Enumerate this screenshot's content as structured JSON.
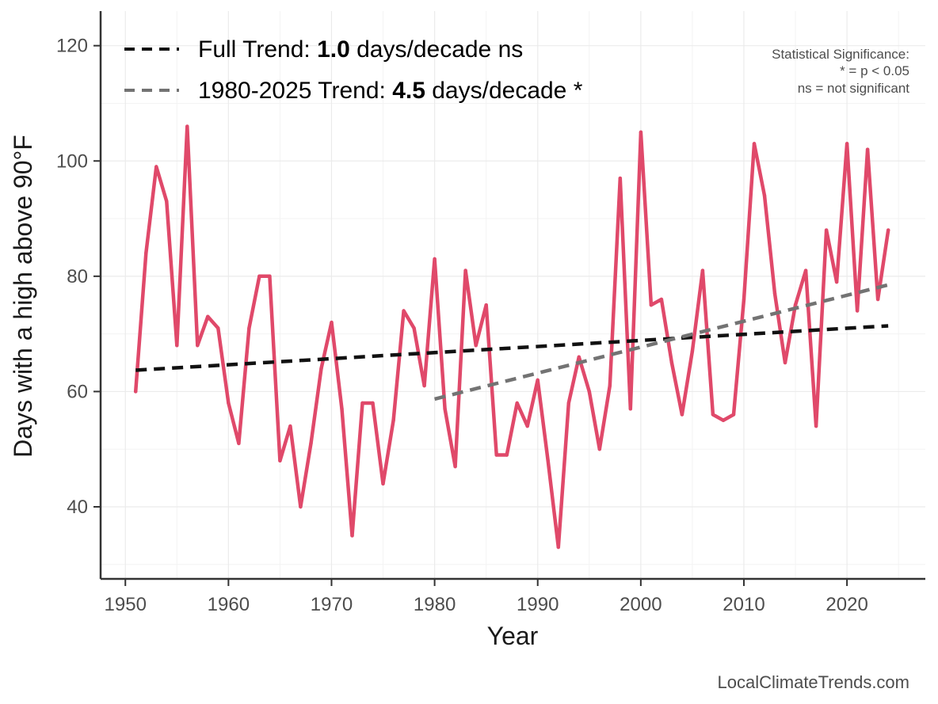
{
  "chart_data": {
    "type": "line",
    "xlabel": "Year",
    "ylabel": "Days with a high above 90°F",
    "xlim": [
      1947.6,
      2027.6
    ],
    "ylim": [
      27.5,
      126
    ],
    "xticks": [
      1950,
      1960,
      1970,
      1980,
      1990,
      2000,
      2010,
      2020
    ],
    "yticks": [
      40,
      60,
      80,
      100,
      120
    ],
    "grid": true,
    "series": [
      {
        "name": "Days with a high above 90°F",
        "color": "#e0496a",
        "x": [
          1951,
          1952,
          1953,
          1954,
          1955,
          1956,
          1957,
          1958,
          1959,
          1960,
          1961,
          1962,
          1963,
          1964,
          1965,
          1966,
          1967,
          1968,
          1969,
          1970,
          1971,
          1972,
          1973,
          1974,
          1975,
          1976,
          1977,
          1978,
          1979,
          1980,
          1981,
          1982,
          1983,
          1984,
          1985,
          1986,
          1987,
          1988,
          1989,
          1990,
          1991,
          1992,
          1993,
          1994,
          1995,
          1996,
          1997,
          1998,
          1999,
          2000,
          2001,
          2002,
          2003,
          2004,
          2005,
          2006,
          2007,
          2008,
          2009,
          2010,
          2011,
          2012,
          2013,
          2014,
          2015,
          2016,
          2017,
          2018,
          2019,
          2020,
          2021,
          2022,
          2023,
          2024
        ],
        "values": [
          60,
          84,
          99,
          93,
          68,
          106,
          68,
          73,
          71,
          58,
          51,
          71,
          80,
          80,
          48,
          54,
          40,
          51,
          64,
          72,
          57,
          35,
          58,
          58,
          44,
          55,
          74,
          71,
          61,
          83,
          57,
          47,
          81,
          68,
          75,
          49,
          49,
          58,
          54,
          62,
          48,
          33,
          58,
          66,
          60,
          50,
          61,
          97,
          57,
          105,
          75,
          76,
          65,
          56,
          67,
          81,
          56,
          55,
          56,
          76,
          103,
          94,
          77,
          65,
          75,
          81,
          54,
          88,
          79,
          103,
          74,
          102,
          76,
          88
        ]
      }
    ],
    "trends": [
      {
        "name": "Full Trend",
        "color": "#111111",
        "x": [
          1951,
          2024
        ],
        "y": [
          63.7,
          71.4
        ]
      },
      {
        "name": "1980-2025 Trend",
        "color": "#737373",
        "x": [
          1980,
          2024
        ],
        "y": [
          58.7,
          78.5
        ]
      }
    ],
    "legend": {
      "position": "top-left",
      "entries": [
        {
          "prefix": "Full Trend: ",
          "value": "1.0",
          "suffix": " days/decade ns"
        },
        {
          "prefix": "1980-2025 Trend: ",
          "value": "4.5",
          "suffix": " days/decade *"
        }
      ]
    },
    "annotation": [
      "Statistical Significance:",
      "* = p < 0.05",
      "ns = not significant"
    ],
    "caption": "LocalClimateTrends.com"
  }
}
